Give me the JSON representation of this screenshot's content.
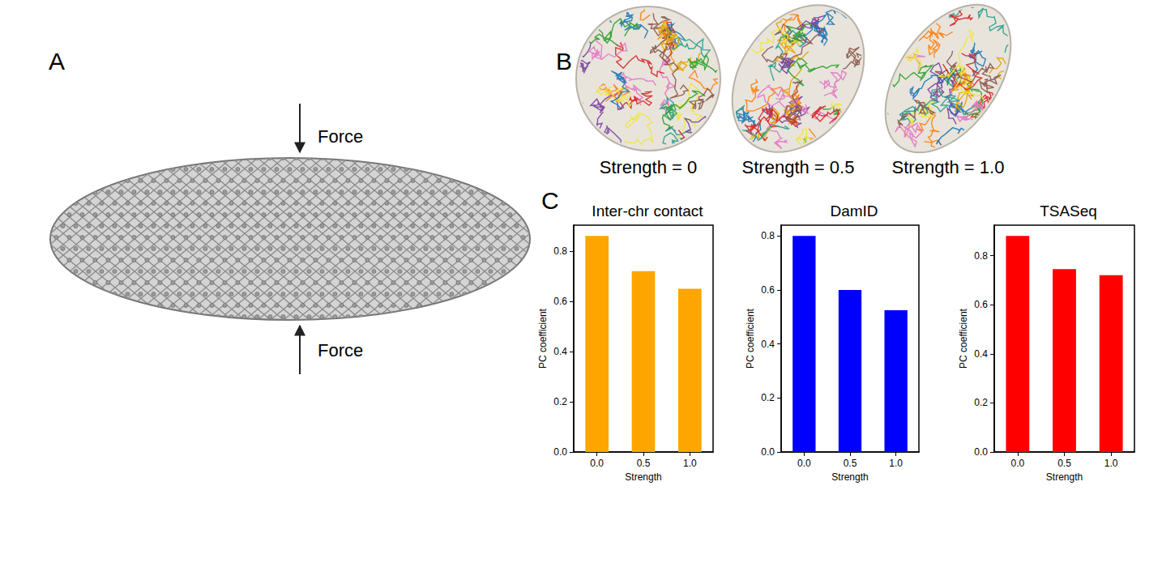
{
  "panel_a": {
    "letter": "A",
    "force_labels": [
      "Force",
      "Force"
    ]
  },
  "panel_b": {
    "letter": "B",
    "labels": [
      "Strength = 0",
      "Strength = 0.5",
      "Strength = 1.0"
    ]
  },
  "panel_c": {
    "letter": "C"
  },
  "chart_data": [
    {
      "type": "bar",
      "title": "Inter-chr contact",
      "x_label": "Strength",
      "y_label": "PC coefficient",
      "categories": [
        "0.0",
        "0.5",
        "1.0"
      ],
      "values": [
        0.86,
        0.72,
        0.65
      ],
      "color": "#ffa500",
      "ylim": [
        0,
        0.903
      ],
      "yticks": [
        {
          "value": 0,
          "label": "0.0"
        },
        0.2,
        0.4,
        0.6,
        0.8
      ],
      "grid": false
    },
    {
      "type": "bar",
      "title": "DamID",
      "x_label": "Strength",
      "y_label": "PC coefficient",
      "categories": [
        "0.0",
        "0.5",
        "1.0"
      ],
      "values": [
        0.8,
        0.6,
        0.525
      ],
      "color": "#0000ff",
      "ylim": [
        0,
        0.84
      ],
      "yticks": [
        {
          "value": 0,
          "label": "0.0"
        },
        0.2,
        0.4,
        0.6,
        0.8
      ],
      "grid": false
    },
    {
      "type": "bar",
      "title": "TSASeq",
      "x_label": "Strength",
      "y_label": "PC coefficient",
      "categories": [
        "0.0",
        "0.5",
        "1.0"
      ],
      "values": [
        0.88,
        0.745,
        0.72
      ],
      "color": "#ff0000",
      "ylim": [
        0,
        0.924
      ],
      "yticks": [
        {
          "value": 0,
          "label": "0.0"
        },
        0.2,
        0.4,
        0.6,
        0.8
      ],
      "grid": false
    }
  ]
}
